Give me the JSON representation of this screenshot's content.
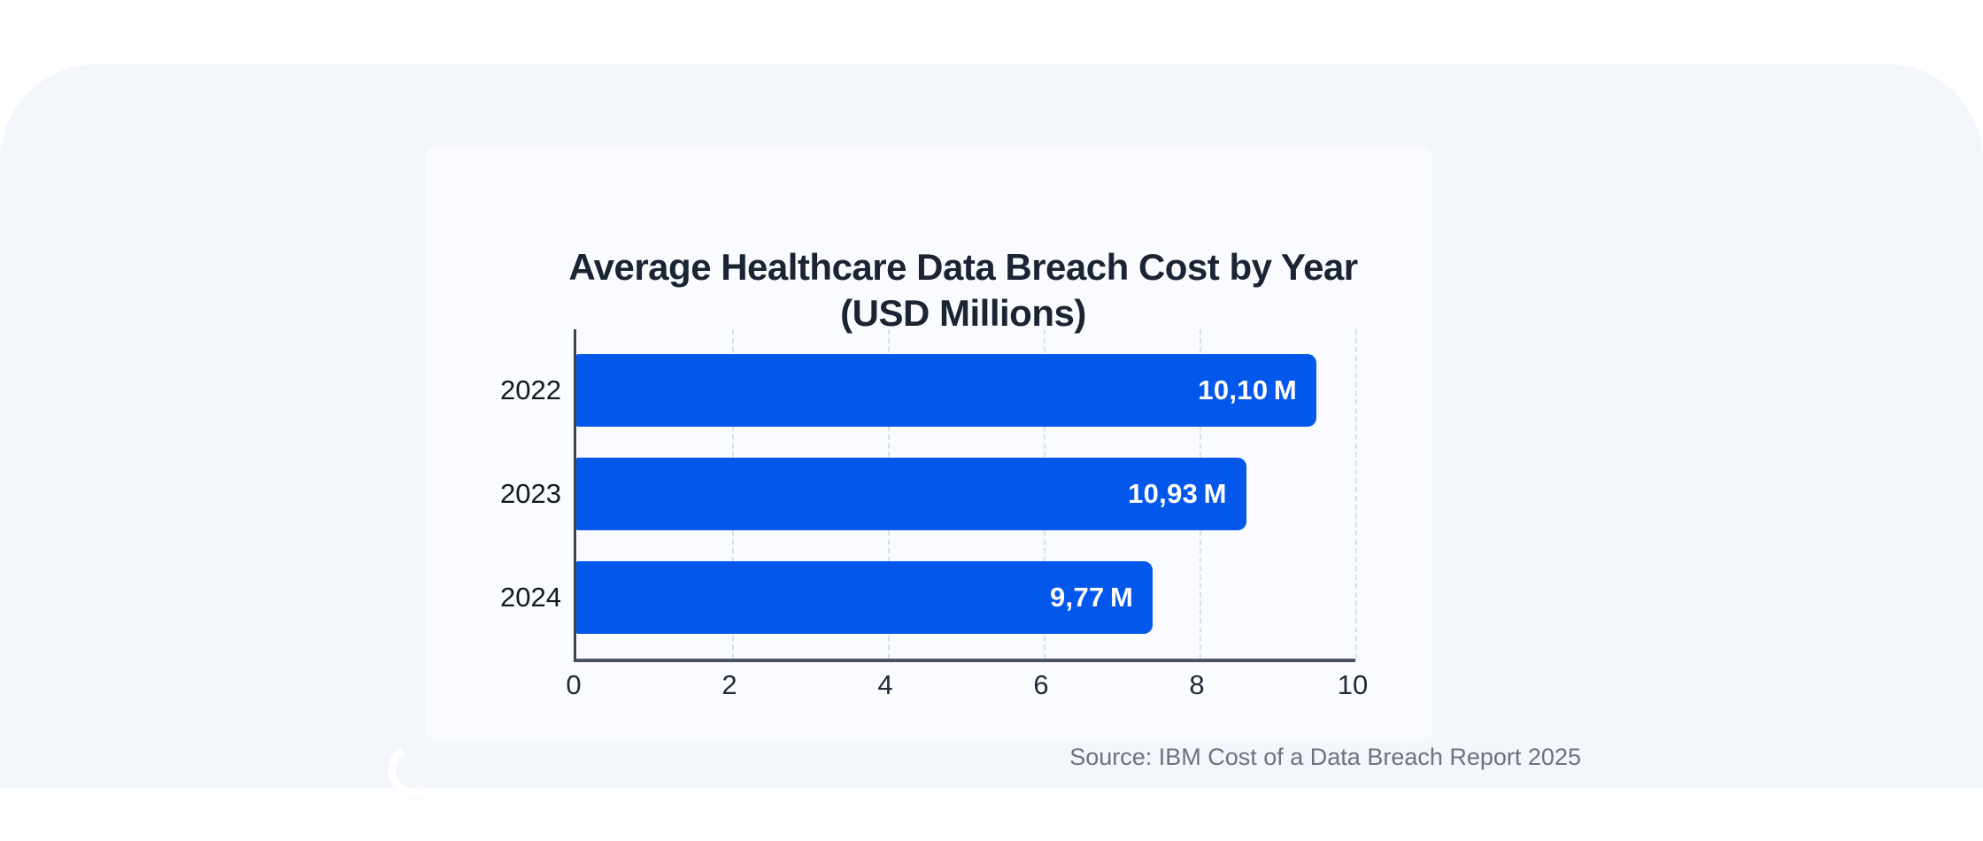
{
  "panel": {
    "background": "#f3f6fa"
  },
  "card": {
    "background": "#f9fbfe"
  },
  "chart_data": {
    "type": "bar",
    "orientation": "horizontal",
    "title": "Average Healthcare Data Breach Cost by Year (USD Millions)",
    "title_line1": "Average Healthcare Data Breach Cost by Year",
    "title_line2": "(USD Millions)",
    "categories": [
      "2022",
      "2023",
      "2024"
    ],
    "values": [
      10.1,
      10.93,
      9.77
    ],
    "value_labels": [
      "10,10 M",
      "10,93 M",
      "9,77 M"
    ],
    "bar_visual_extent_units": [
      9.5,
      8.6,
      7.4
    ],
    "xlim": [
      0,
      10
    ],
    "x_ticks": [
      0,
      2,
      4,
      6,
      8,
      10
    ],
    "xlabel": "",
    "ylabel": "",
    "grid": "vertical-dashed-at-ticks",
    "legend": "none",
    "bar_color": "#0457eb",
    "value_label_color": "#ffffff",
    "title_color": "#1b2433",
    "tick_label_color": "#1f2937",
    "category_label_color": "#13181f",
    "source": "Source: IBM Cost of a Data Breach Report 2025",
    "source_color": "#6b7280"
  }
}
